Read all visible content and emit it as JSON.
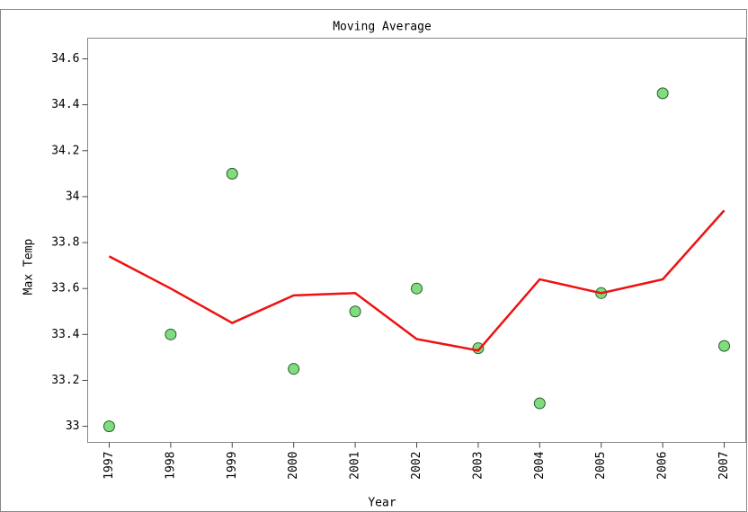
{
  "chart_data": {
    "type": "scatter",
    "title": "Moving Average",
    "x_label": "Year",
    "y_label": "Max Temp",
    "x": [
      1997,
      1998,
      1999,
      2000,
      2001,
      2002,
      2003,
      2004,
      2005,
      2006,
      2007
    ],
    "series": [
      {
        "type": "scatter",
        "color": "#7fdc7f",
        "values": [
          33.0,
          33.4,
          34.1,
          33.25,
          33.5,
          33.6,
          33.34,
          33.1,
          33.58,
          34.45,
          33.35
        ]
      },
      {
        "type": "line",
        "color": "#ee1111",
        "values": [
          33.74,
          33.6,
          33.45,
          33.57,
          33.58,
          33.38,
          33.33,
          33.64,
          33.58,
          33.64,
          33.94
        ]
      }
    ],
    "xlim": [
      1996.65,
      2007.35
    ],
    "xticks": [
      1997,
      1998,
      1999,
      2000,
      2001,
      2002,
      2003,
      2004,
      2005,
      2006,
      2007
    ],
    "ylim": [
      32.93,
      34.69
    ],
    "yticks": [
      33,
      33.2,
      33.4,
      33.6,
      33.8,
      34,
      34.2,
      34.4,
      34.6
    ]
  }
}
